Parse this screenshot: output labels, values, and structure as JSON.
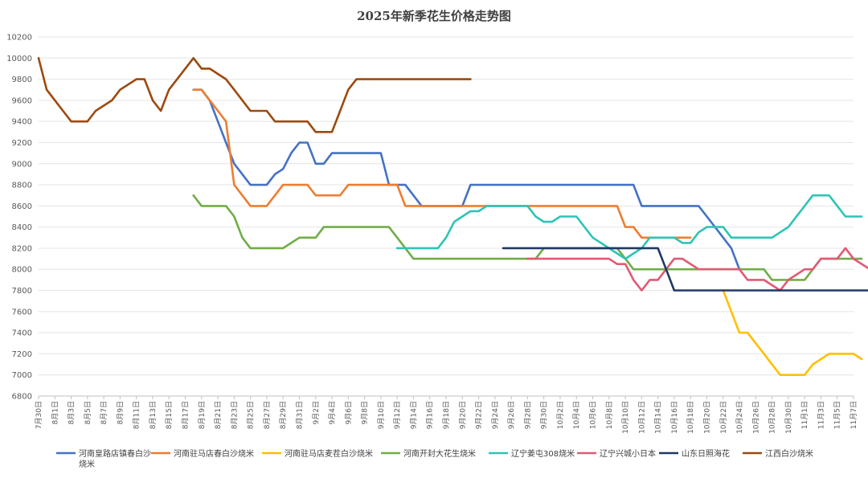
{
  "chart_data": {
    "type": "line",
    "title": "2025年新季花生价格走势图",
    "xlabel": "",
    "ylabel": "",
    "ylim": [
      6800,
      10200
    ],
    "ystep": 200,
    "grid": "horizontal",
    "legend_position": "bottom",
    "categories": [
      "7月30日",
      "8月1日",
      "8月3日",
      "8月5日",
      "8月7日",
      "8月9日",
      "8月11日",
      "8月13日",
      "8月15日",
      "8月17日",
      "8月19日",
      "8月21日",
      "8月23日",
      "8月25日",
      "8月27日",
      "8月29日",
      "8月31日",
      "9月2日",
      "9月4日",
      "9月6日",
      "9月8日",
      "9月10日",
      "9月12日",
      "9月14日",
      "9月16日",
      "9月18日",
      "9月20日",
      "9月22日",
      "9月24日",
      "9月26日",
      "9月28日",
      "9月30日",
      "10月2日",
      "10月4日",
      "10月6日",
      "10月8日",
      "10月10日",
      "10月12日",
      "10月14日",
      "10月16日",
      "10月18日",
      "10月20日",
      "10月22日",
      "10月24日",
      "10月26日",
      "10月28日",
      "10月30日",
      "11月1日",
      "11月3日",
      "11月5日",
      "11月7日"
    ],
    "series": [
      {
        "name": "河南皇路店镇春白沙烧米",
        "color": "#4472c4",
        "points": [
          [
            19,
            9700
          ],
          [
            20,
            9700
          ],
          [
            21,
            9600
          ],
          [
            22,
            9400
          ],
          [
            23,
            9200
          ],
          [
            24,
            9000
          ],
          [
            26,
            8800
          ],
          [
            28,
            8800
          ],
          [
            29,
            8900
          ],
          [
            30,
            8950
          ],
          [
            31,
            9100
          ],
          [
            32,
            9200
          ],
          [
            33,
            9200
          ],
          [
            34,
            9000
          ],
          [
            35,
            9000
          ],
          [
            36,
            9100
          ],
          [
            42,
            9100
          ],
          [
            43,
            8800
          ],
          [
            45,
            8800
          ],
          [
            47,
            8600
          ],
          [
            52,
            8600
          ],
          [
            53,
            8800
          ],
          [
            73,
            8800
          ],
          [
            74,
            8600
          ],
          [
            81,
            8600
          ],
          [
            82,
            8500
          ],
          [
            84,
            8300
          ],
          [
            85,
            8200
          ],
          [
            86,
            8000
          ]
        ]
      },
      {
        "name": "河南驻马店春白沙烧米",
        "color": "#ed7d31",
        "points": [
          [
            19,
            9700
          ],
          [
            20,
            9700
          ],
          [
            22,
            9500
          ],
          [
            23,
            9400
          ],
          [
            24,
            8800
          ],
          [
            25,
            8700
          ],
          [
            26,
            8600
          ],
          [
            28,
            8600
          ],
          [
            30,
            8800
          ],
          [
            33,
            8800
          ],
          [
            34,
            8700
          ],
          [
            37,
            8700
          ],
          [
            38,
            8800
          ],
          [
            44,
            8800
          ],
          [
            45,
            8600
          ],
          [
            71,
            8600
          ],
          [
            72,
            8400
          ],
          [
            73,
            8400
          ],
          [
            74,
            8300
          ],
          [
            80,
            8300
          ]
        ]
      },
      {
        "name": "河南驻马店麦茬白沙烧米",
        "color": "#ffc000",
        "points": [
          [
            84,
            7800
          ],
          [
            85,
            7600
          ],
          [
            86,
            7400
          ],
          [
            87,
            7400
          ],
          [
            88,
            7300
          ],
          [
            89,
            7200
          ],
          [
            90,
            7100
          ],
          [
            91,
            7000
          ],
          [
            94,
            7000
          ],
          [
            95,
            7100
          ],
          [
            97,
            7200
          ],
          [
            100,
            7200
          ],
          [
            101,
            7150
          ]
        ]
      },
      {
        "name": "河南开封大花生烧米",
        "color": "#70ad47",
        "points": [
          [
            19,
            8700
          ],
          [
            20,
            8600
          ],
          [
            23,
            8600
          ],
          [
            24,
            8500
          ],
          [
            25,
            8300
          ],
          [
            26,
            8200
          ],
          [
            30,
            8200
          ],
          [
            31,
            8250
          ],
          [
            32,
            8300
          ],
          [
            34,
            8300
          ],
          [
            35,
            8400
          ],
          [
            43,
            8400
          ],
          [
            44,
            8300
          ],
          [
            45,
            8200
          ],
          [
            46,
            8100
          ],
          [
            61,
            8100
          ],
          [
            62,
            8200
          ],
          [
            71,
            8200
          ],
          [
            72,
            8100
          ],
          [
            73,
            8000
          ],
          [
            86,
            8000
          ],
          [
            89,
            8000
          ],
          [
            90,
            7900
          ],
          [
            94,
            7900
          ],
          [
            95,
            8000
          ],
          [
            96,
            8100
          ],
          [
            101,
            8100
          ]
        ]
      },
      {
        "name": "辽宁姜屯308烧米",
        "color": "#2ec4b6",
        "points": [
          [
            44,
            8200
          ],
          [
            49,
            8200
          ],
          [
            50,
            8300
          ],
          [
            51,
            8450
          ],
          [
            52,
            8500
          ],
          [
            53,
            8550
          ],
          [
            54,
            8550
          ],
          [
            55,
            8600
          ],
          [
            60,
            8600
          ],
          [
            61,
            8500
          ],
          [
            62,
            8450
          ],
          [
            63,
            8450
          ],
          [
            64,
            8500
          ],
          [
            66,
            8500
          ],
          [
            68,
            8300
          ],
          [
            70,
            8200
          ],
          [
            71,
            8150
          ],
          [
            72,
            8100
          ],
          [
            74,
            8200
          ],
          [
            75,
            8300
          ],
          [
            78,
            8300
          ],
          [
            79,
            8250
          ],
          [
            80,
            8250
          ],
          [
            81,
            8350
          ],
          [
            82,
            8400
          ],
          [
            84,
            8400
          ],
          [
            85,
            8300
          ],
          [
            90,
            8300
          ],
          [
            91,
            8350
          ],
          [
            92,
            8400
          ],
          [
            95,
            8700
          ],
          [
            97,
            8700
          ],
          [
            99,
            8500
          ],
          [
            101,
            8500
          ]
        ]
      },
      {
        "name": "辽宁兴城小日本",
        "color": "#e05a74",
        "points": [
          [
            60,
            8100
          ],
          [
            70,
            8100
          ],
          [
            71,
            8050
          ],
          [
            72,
            8050
          ],
          [
            73,
            7900
          ],
          [
            74,
            7800
          ],
          [
            75,
            7900
          ],
          [
            76,
            7900
          ],
          [
            78,
            8100
          ],
          [
            79,
            8100
          ],
          [
            81,
            8000
          ],
          [
            86,
            8000
          ],
          [
            87,
            7900
          ],
          [
            89,
            7900
          ],
          [
            91,
            7800
          ],
          [
            92,
            7900
          ],
          [
            94,
            8000
          ],
          [
            95,
            8000
          ],
          [
            96,
            8100
          ],
          [
            98,
            8100
          ],
          [
            99,
            8200
          ],
          [
            100,
            8100
          ],
          [
            102,
            8000
          ],
          [
            103,
            8000
          ]
        ]
      },
      {
        "name": "山东日照海花",
        "color": "#203864",
        "points": [
          [
            57,
            8200
          ],
          [
            76,
            8200
          ],
          [
            77,
            8000
          ],
          [
            78,
            7800
          ],
          [
            103,
            7800
          ]
        ]
      },
      {
        "name": "江西白沙烧米",
        "color": "#9c4a0f",
        "points": [
          [
            0,
            10000
          ],
          [
            1,
            9700
          ],
          [
            3,
            9500
          ],
          [
            4,
            9400
          ],
          [
            6,
            9400
          ],
          [
            7,
            9500
          ],
          [
            9,
            9600
          ],
          [
            10,
            9700
          ],
          [
            12,
            9800
          ],
          [
            13,
            9800
          ],
          [
            14,
            9600
          ],
          [
            15,
            9500
          ],
          [
            16,
            9700
          ],
          [
            19,
            10000
          ],
          [
            20,
            9900
          ],
          [
            21,
            9900
          ],
          [
            23,
            9800
          ],
          [
            24,
            9700
          ],
          [
            26,
            9500
          ],
          [
            28,
            9500
          ],
          [
            29,
            9400
          ],
          [
            33,
            9400
          ],
          [
            34,
            9300
          ],
          [
            36,
            9300
          ],
          [
            37,
            9500
          ],
          [
            38,
            9700
          ],
          [
            39,
            9800
          ],
          [
            53,
            9800
          ]
        ]
      }
    ]
  }
}
